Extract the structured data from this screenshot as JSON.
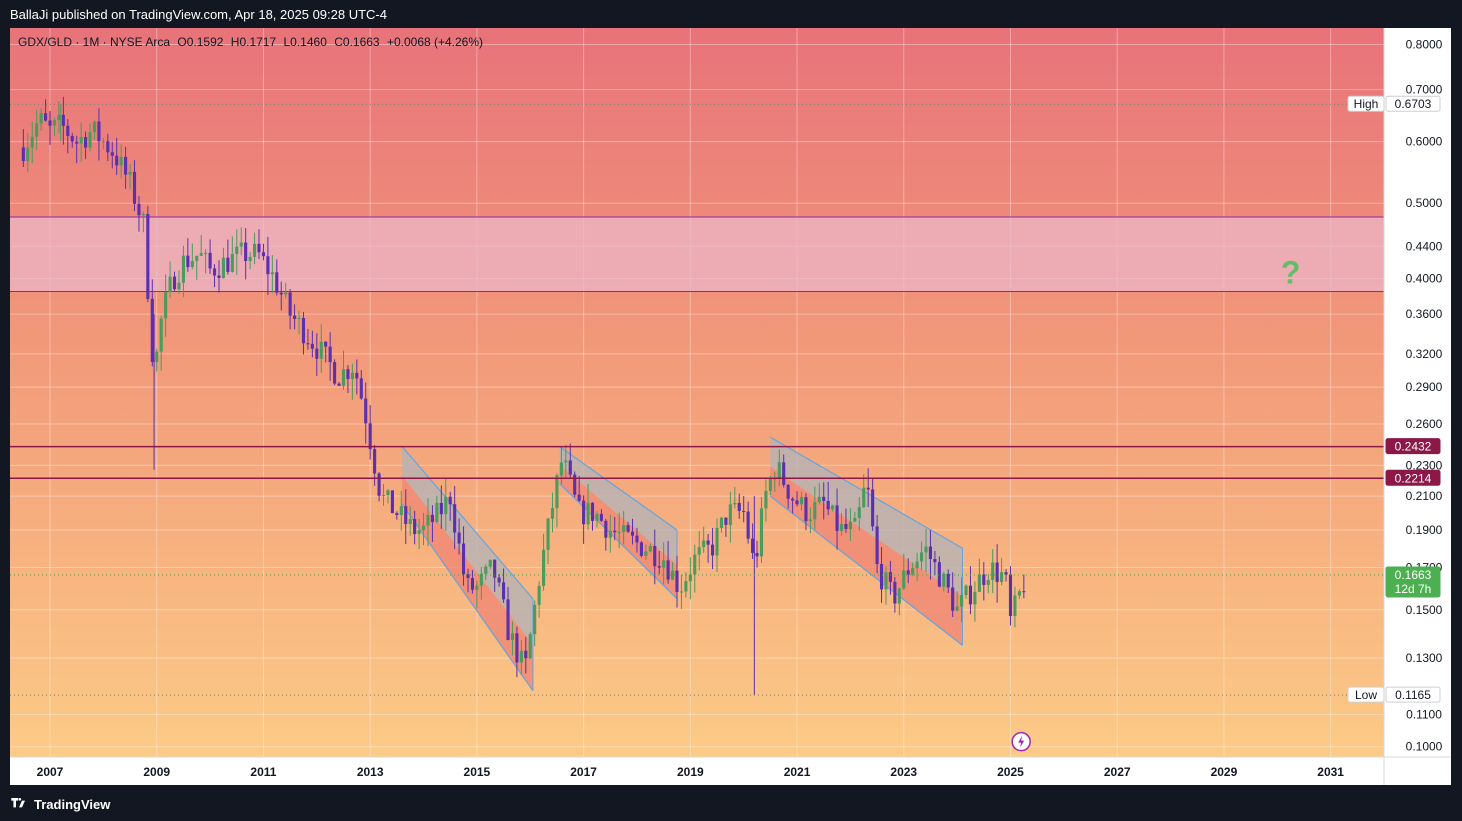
{
  "header": {
    "publisher": "BallaJi published on TradingView.com, Apr 18, 2025 09:28 UTC-4"
  },
  "legend": {
    "symbol": "GDX/GLD · 1M · NYSE Arca",
    "open": "O0.1592",
    "high": "H0.1717",
    "low": "L0.1460",
    "close": "C0.1663",
    "change": "+0.0068 (+4.26%)"
  },
  "footer": {
    "brand": "TradingView"
  },
  "annotations": {
    "question_mark": "?",
    "high_label": "High",
    "low_label": "Low",
    "current_countdown": "12d 7h"
  },
  "colors": {
    "gradient_top": "#e8737a",
    "gradient_bottom": "#fccb86",
    "zone_fill": "#ecb6c8",
    "zone_border": "#8e24aa",
    "resistance_line": "#8b1847",
    "channel_fill_gray": "#b8b3b3",
    "channel_fill_red": "#f08a75",
    "channel_border": "#64a4e0",
    "candle_up": "#4a9b5c",
    "candle_down": "#5b2fb0",
    "price_tag_green": "#4caf50",
    "question_green": "#66bb6a"
  },
  "chart_data": {
    "type": "candlestick",
    "title": "GDX/GLD · 1M · NYSE Arca",
    "y_scale": "log",
    "ylim": [
      0.097,
      0.84
    ],
    "xlim": [
      2006.25,
      2032.0
    ],
    "x_ticks": [
      "2007",
      "2009",
      "2011",
      "2013",
      "2015",
      "2017",
      "2019",
      "2021",
      "2023",
      "2025",
      "2027",
      "2029",
      "2031"
    ],
    "y_ticks": [
      "0.8000",
      "0.7000",
      "0.6000",
      "0.5000",
      "0.4400",
      "0.4000",
      "0.3600",
      "0.3200",
      "0.2900",
      "0.2600",
      "0.2300",
      "0.2100",
      "0.1900",
      "0.1700",
      "0.1500",
      "0.1300",
      "0.1100",
      "0.1000"
    ],
    "price_tags": [
      {
        "label": "0.6703",
        "value": 0.6703,
        "kind": "high"
      },
      {
        "label": "0.2432",
        "value": 0.2432,
        "kind": "resistance"
      },
      {
        "label": "0.2214",
        "value": 0.2214,
        "kind": "resistance"
      },
      {
        "label": "0.1663",
        "value": 0.1663,
        "kind": "current"
      },
      {
        "label": "0.1165",
        "value": 0.1165,
        "kind": "low"
      }
    ],
    "horizontal_lines": [
      {
        "value": 0.2432,
        "style": "solid"
      },
      {
        "value": 0.2214,
        "style": "solid"
      },
      {
        "value": 0.6703,
        "style": "dotted"
      },
      {
        "value": 0.1663,
        "style": "dotted"
      },
      {
        "value": 0.1165,
        "style": "dotted"
      }
    ],
    "zone": {
      "top": 0.48,
      "bottom": 0.385
    },
    "channels": [
      {
        "x1": 2013.6,
        "x2": 2016.05,
        "top_start": 0.2432,
        "top_end": 0.155,
        "bottom_start": 0.205,
        "bottom_end": 0.118
      },
      {
        "x1": 2016.55,
        "x2": 2018.75,
        "top_start": 0.2432,
        "top_end": 0.19,
        "bottom_start": 0.218,
        "bottom_end": 0.155
      },
      {
        "x1": 2020.5,
        "x2": 2024.1,
        "top_start": 0.25,
        "top_end": 0.18,
        "bottom_start": 0.21,
        "bottom_end": 0.135
      }
    ],
    "path": [
      [
        2006.5,
        0.59
      ],
      [
        2006.8,
        0.64
      ],
      [
        2007.0,
        0.62
      ],
      [
        2007.2,
        0.63
      ],
      [
        2007.5,
        0.6
      ],
      [
        2007.8,
        0.62
      ],
      [
        2008.0,
        0.6
      ],
      [
        2008.2,
        0.58
      ],
      [
        2008.5,
        0.53
      ],
      [
        2008.75,
        0.47
      ],
      [
        2008.95,
        0.3
      ],
      [
        2009.1,
        0.36
      ],
      [
        2009.3,
        0.4
      ],
      [
        2009.5,
        0.42
      ],
      [
        2009.8,
        0.43
      ],
      [
        2010.0,
        0.41
      ],
      [
        2010.3,
        0.42
      ],
      [
        2010.6,
        0.43
      ],
      [
        2010.9,
        0.43
      ],
      [
        2011.2,
        0.4
      ],
      [
        2011.5,
        0.36
      ],
      [
        2011.8,
        0.34
      ],
      [
        2012.1,
        0.32
      ],
      [
        2012.4,
        0.3
      ],
      [
        2012.7,
        0.31
      ],
      [
        2012.9,
        0.27
      ],
      [
        2013.2,
        0.21
      ],
      [
        2013.5,
        0.2
      ],
      [
        2013.8,
        0.19
      ],
      [
        2014.0,
        0.19
      ],
      [
        2014.3,
        0.2
      ],
      [
        2014.5,
        0.21
      ],
      [
        2014.8,
        0.16
      ],
      [
        2015.0,
        0.16
      ],
      [
        2015.3,
        0.17
      ],
      [
        2015.6,
        0.14
      ],
      [
        2015.9,
        0.125
      ],
      [
        2016.2,
        0.17
      ],
      [
        2016.45,
        0.21
      ],
      [
        2016.6,
        0.235
      ],
      [
        2016.9,
        0.2
      ],
      [
        2017.2,
        0.2
      ],
      [
        2017.5,
        0.19
      ],
      [
        2017.8,
        0.185
      ],
      [
        2018.2,
        0.18
      ],
      [
        2018.5,
        0.175
      ],
      [
        2018.8,
        0.16
      ],
      [
        2019.1,
        0.175
      ],
      [
        2019.4,
        0.18
      ],
      [
        2019.7,
        0.2
      ],
      [
        2020.0,
        0.2
      ],
      [
        2020.2,
        0.17
      ],
      [
        2020.4,
        0.21
      ],
      [
        2020.6,
        0.23
      ],
      [
        2020.9,
        0.21
      ],
      [
        2021.2,
        0.2
      ],
      [
        2021.5,
        0.205
      ],
      [
        2021.8,
        0.19
      ],
      [
        2022.1,
        0.19
      ],
      [
        2022.3,
        0.22
      ],
      [
        2022.5,
        0.17
      ],
      [
        2022.8,
        0.155
      ],
      [
        2023.1,
        0.17
      ],
      [
        2023.4,
        0.18
      ],
      [
        2023.7,
        0.165
      ],
      [
        2024.0,
        0.15
      ],
      [
        2024.3,
        0.16
      ],
      [
        2024.6,
        0.17
      ],
      [
        2024.9,
        0.165
      ],
      [
        2025.0,
        0.145
      ],
      [
        2025.3,
        0.1663
      ]
    ]
  }
}
